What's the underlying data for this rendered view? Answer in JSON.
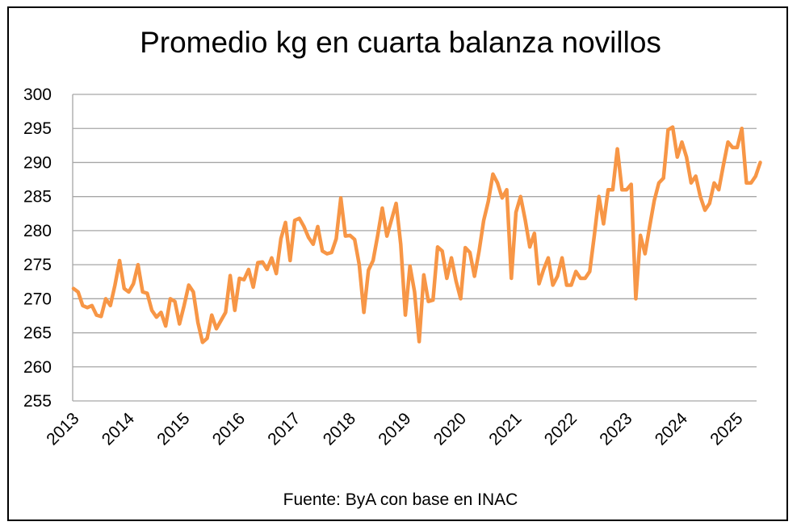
{
  "chart_data": {
    "type": "line",
    "title": "Promedio kg en cuarta balanza novillos",
    "source": "Fuente: ByA con base en INAC",
    "xlabel": "",
    "ylabel": "",
    "ylim": [
      255,
      300
    ],
    "yticks": [
      255,
      260,
      265,
      270,
      275,
      280,
      285,
      290,
      295,
      300
    ],
    "xticks": [
      "2013",
      "2014",
      "2015",
      "2016",
      "2017",
      "2018",
      "2019",
      "2020",
      "2021",
      "2022",
      "2023",
      "2024",
      "2025"
    ],
    "grid": true,
    "line_color": "#F79646",
    "series": [
      {
        "values": [
          271.5,
          271.0,
          269.0,
          268.7,
          269.0,
          267.6,
          267.4,
          270.0,
          269.0,
          272.0,
          275.6,
          271.5,
          271.0,
          272.2,
          275.0,
          271.0,
          270.8,
          268.3,
          267.3,
          268.0,
          266.0,
          270.0,
          269.6,
          266.3,
          269.0,
          272.0,
          271.0,
          266.5,
          263.6,
          264.2,
          267.6,
          265.6,
          266.8,
          268.0,
          273.4,
          268.3,
          273.0,
          272.8,
          274.3,
          271.7,
          275.3,
          275.4,
          274.3,
          276.0,
          273.7,
          278.8,
          281.2,
          275.6,
          281.5,
          281.8,
          280.6,
          279.0,
          278.0,
          280.6,
          277.0,
          276.6,
          276.8,
          278.8,
          284.8,
          279.2,
          279.3,
          278.7,
          275.0,
          268.0,
          274.2,
          275.6,
          279.3,
          283.3,
          279.2,
          281.6,
          284.0,
          278.0,
          267.6,
          274.8,
          271.0,
          263.7,
          273.5,
          269.6,
          269.8,
          277.6,
          277.0,
          273.0,
          276.0,
          272.6,
          270.0,
          277.5,
          276.8,
          273.3,
          277.0,
          281.5,
          284.3,
          288.3,
          287.0,
          284.8,
          286.0,
          273.0,
          282.7,
          285.0,
          281.6,
          277.6,
          279.6,
          272.2,
          274.3,
          276.0,
          272.0,
          273.3,
          276.0,
          272.0,
          272.0,
          274.0,
          273.0,
          273.0,
          274.0,
          279.3,
          285.0,
          281.0,
          286.0,
          286.0,
          292.0,
          286.0,
          286.0,
          286.8,
          270.0,
          279.3,
          276.6,
          280.6,
          284.4,
          287.0,
          287.7,
          294.8,
          295.2,
          290.8,
          293.0,
          290.8,
          287.0,
          288.0,
          285.0,
          283.0,
          284.0,
          287.0,
          286.0,
          289.6,
          293.0,
          292.2,
          292.2,
          295.0,
          287.0,
          287.0,
          288.0,
          290.0
        ]
      }
    ]
  }
}
